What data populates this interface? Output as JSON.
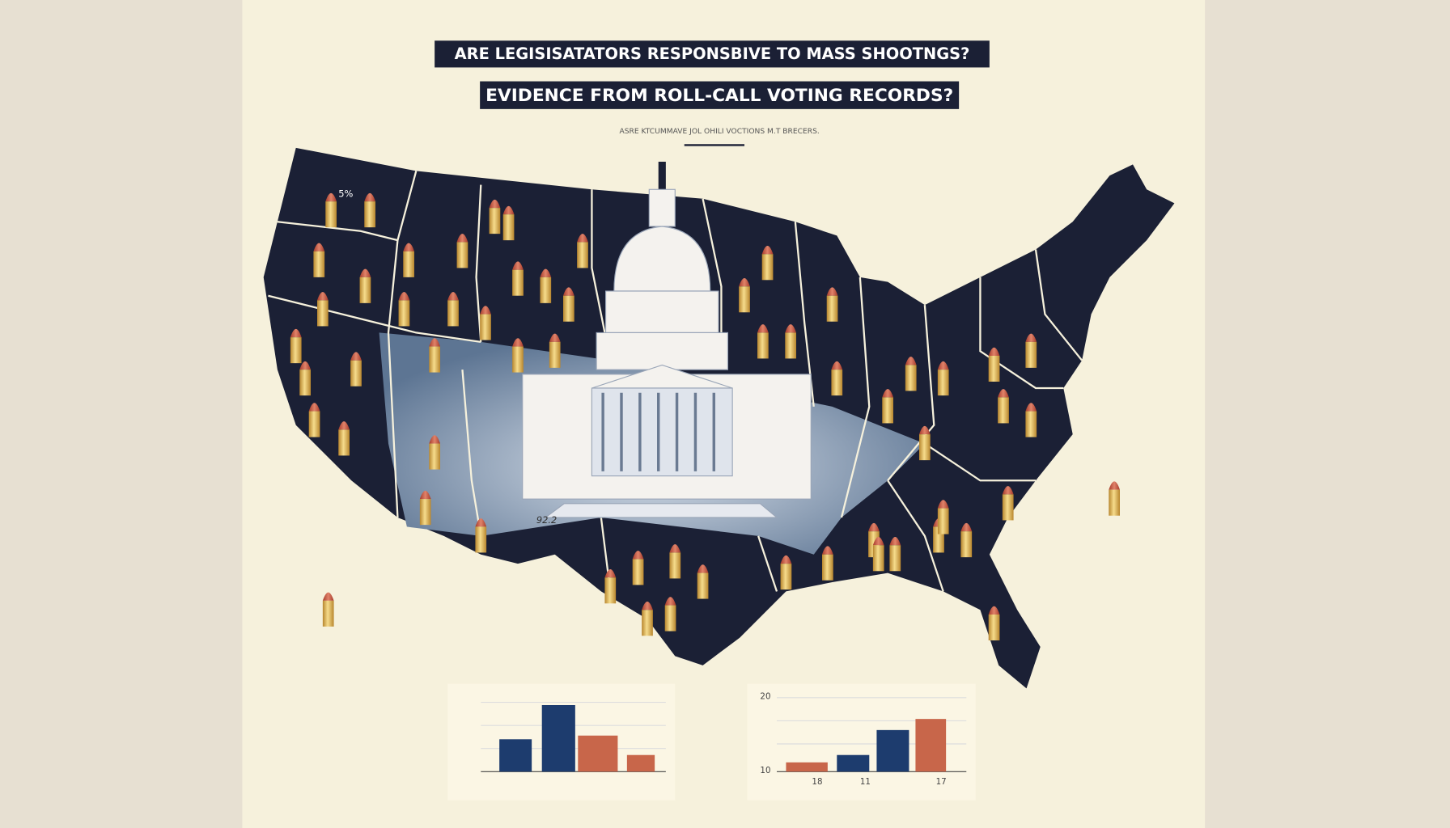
{
  "header": {
    "title": "ARE LEGISISATATORS RESPONSBIVE TO MASS SHOOTNGS?",
    "subtitle": "EVIDENCE FROM ROLL-CALL VOTING RECORDS?",
    "caption": "ASRE KTCUMMAVE JOL OHILI VOCTIONS M.T BRECERS."
  },
  "map": {
    "labels": [
      "5%",
      "92.2"
    ]
  },
  "charts": {
    "right": {
      "y_labels": [
        "20",
        "10"
      ],
      "x_labels": [
        "18",
        "11",
        "17"
      ]
    }
  }
}
